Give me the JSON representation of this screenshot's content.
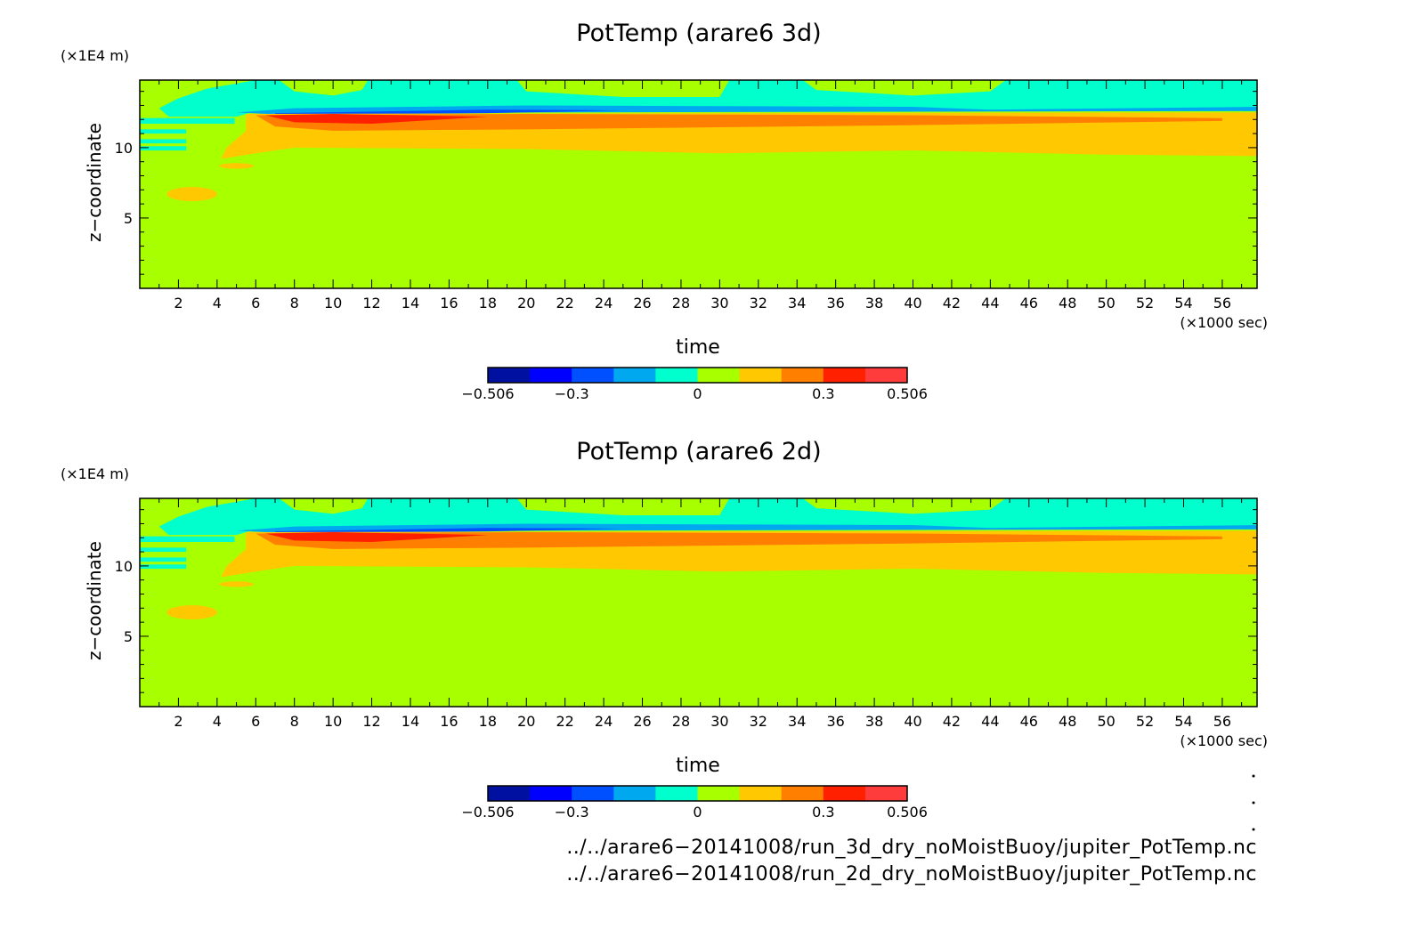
{
  "chart_data": [
    {
      "type": "heatmap",
      "title": "PotTemp (arare6 3d)",
      "xlabel": "time",
      "xunit": "(×1000 sec)",
      "ylabel": "z−coordinate",
      "yunit": "(×1E4 m)",
      "xlim": [
        0,
        57.8
      ],
      "ylim": [
        0,
        14.8
      ],
      "xticks": [
        "2",
        "4",
        "6",
        "8",
        "10",
        "12",
        "14",
        "16",
        "18",
        "20",
        "22",
        "24",
        "26",
        "28",
        "30",
        "32",
        "34",
        "36",
        "38",
        "40",
        "42",
        "44",
        "46",
        "48",
        "50",
        "52",
        "54",
        "56"
      ],
      "yticks": [
        "5",
        "10"
      ],
      "colorbar": {
        "colors": [
          "#0010a0",
          "#0000ff",
          "#0050ff",
          "#00a8f0",
          "#00ffcc",
          "#a8ff00",
          "#ffc800",
          "#ff8000",
          "#ff2000",
          "#ff3c3c"
        ],
        "labels": [
          "−0.506",
          "−0.3",
          "0",
          "0.3",
          "0.506"
        ]
      }
    },
    {
      "type": "heatmap",
      "title": "PotTemp (arare6 2d)",
      "xlabel": "time",
      "xunit": "(×1000 sec)",
      "ylabel": "z−coordinate",
      "yunit": "(×1E4 m)",
      "xlim": [
        0,
        57.8
      ],
      "ylim": [
        0,
        14.8
      ],
      "xticks": [
        "2",
        "4",
        "6",
        "8",
        "10",
        "12",
        "14",
        "16",
        "18",
        "20",
        "22",
        "24",
        "26",
        "28",
        "30",
        "32",
        "34",
        "36",
        "38",
        "40",
        "42",
        "44",
        "46",
        "48",
        "50",
        "52",
        "54",
        "56"
      ],
      "yticks": [
        "5",
        "10"
      ],
      "colorbar": {
        "colors": [
          "#0010a0",
          "#0000ff",
          "#0050ff",
          "#00a8f0",
          "#00ffcc",
          "#a8ff00",
          "#ffc800",
          "#ff8000",
          "#ff2000",
          "#ff3c3c"
        ],
        "labels": [
          "−0.506",
          "−0.3",
          "0",
          "0.3",
          "0.506"
        ]
      }
    }
  ],
  "footer": {
    "file1": "../../arare6−20141008/run_3d_dry_noMoistBuoy/jupiter_PotTemp.nc",
    "file2": "../../arare6−20141008/run_2d_dry_noMoistBuoy/jupiter_PotTemp.nc"
  }
}
